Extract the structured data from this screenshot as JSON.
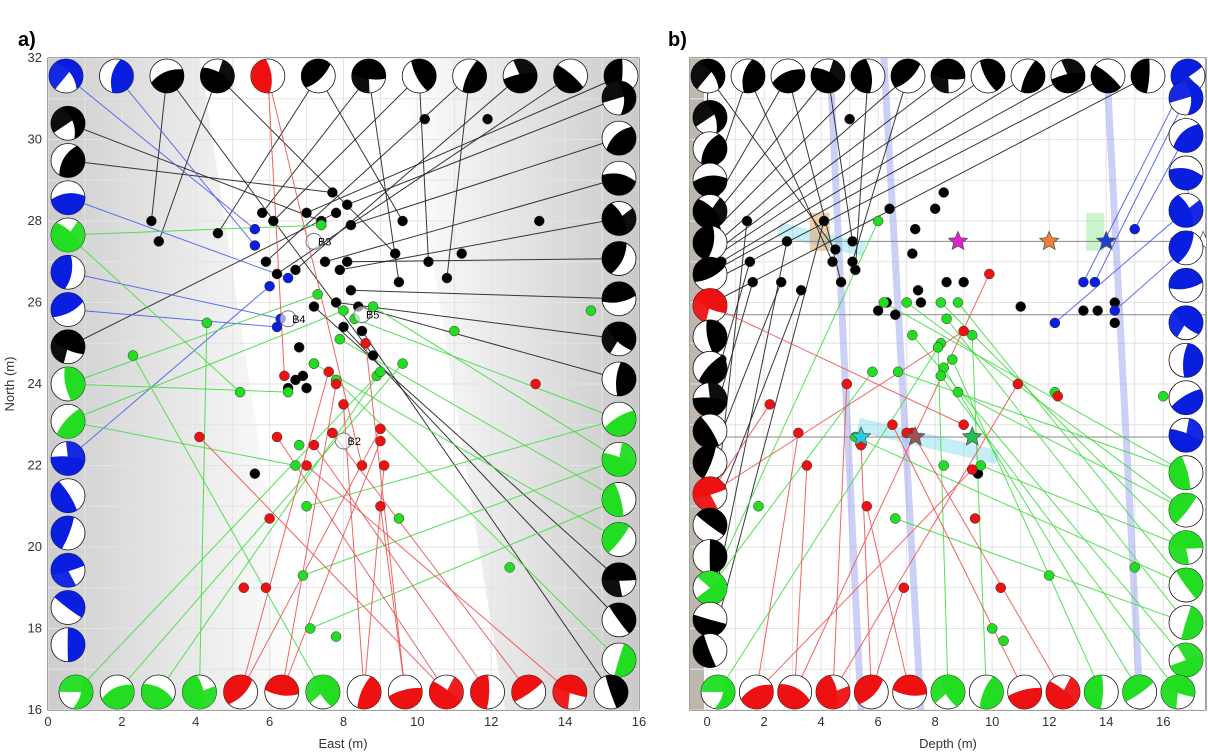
{
  "colors": {
    "black": "#000000",
    "blue": "#0a1ee0",
    "green": "#22dd22",
    "red": "#ee1111",
    "blue_line": "#4a5ff0",
    "green_line": "#44dd44",
    "red_line": "#ee5555"
  },
  "chart_data": [
    {
      "panel_label": "a)",
      "type": "scatter",
      "xlabel": "East (m)",
      "ylabel": "North (m)",
      "xlim": [
        0,
        16
      ],
      "ylim": [
        16,
        32
      ],
      "xticks": [
        "0",
        "2",
        "4",
        "6",
        "8",
        "10",
        "12",
        "14",
        "16"
      ],
      "yticks": [
        "16",
        "18",
        "20",
        "22",
        "24",
        "26",
        "28",
        "30",
        "32"
      ],
      "grid": true,
      "annotations": [
        {
          "text": "B3",
          "x": 7.2,
          "y": 27.5
        },
        {
          "text": "B4",
          "x": 6.5,
          "y": 25.6
        },
        {
          "text": "B5",
          "x": 8.5,
          "y": 25.7
        },
        {
          "text": "B2",
          "x": 8.0,
          "y": 22.6
        }
      ],
      "points": {
        "black": [
          [
            2.8,
            28
          ],
          [
            3.0,
            27.5
          ],
          [
            4.6,
            27.7
          ],
          [
            5.8,
            28.2
          ],
          [
            6.1,
            28.0
          ],
          [
            5.9,
            27.0
          ],
          [
            6.7,
            26.8
          ],
          [
            6.2,
            26.7
          ],
          [
            7.0,
            28.2
          ],
          [
            7.4,
            28.0
          ],
          [
            7.7,
            28.7
          ],
          [
            7.8,
            28.2
          ],
          [
            8.1,
            28.4
          ],
          [
            8.2,
            27.9
          ],
          [
            7.5,
            27.0
          ],
          [
            7.9,
            26.8
          ],
          [
            8.1,
            27.0
          ],
          [
            8.2,
            26.3
          ],
          [
            7.8,
            26.0
          ],
          [
            8.4,
            25.9
          ],
          [
            7.2,
            25.9
          ],
          [
            8.0,
            25.4
          ],
          [
            8.5,
            25.3
          ],
          [
            8.8,
            24.7
          ],
          [
            9.4,
            27.2
          ],
          [
            9.6,
            28.0
          ],
          [
            9.5,
            26.5
          ],
          [
            10.3,
            27.0
          ],
          [
            10.8,
            26.6
          ],
          [
            11.2,
            27.2
          ],
          [
            10.2,
            30.5
          ],
          [
            11.9,
            30.5
          ],
          [
            13.3,
            28.0
          ],
          [
            7.2,
            24.5
          ],
          [
            6.9,
            24.2
          ],
          [
            6.7,
            24.1
          ],
          [
            6.5,
            23.9
          ],
          [
            7.0,
            23.9
          ],
          [
            5.6,
            21.8
          ],
          [
            6.8,
            24.9
          ]
        ],
        "blue": [
          [
            5.6,
            27.8
          ],
          [
            5.6,
            27.4
          ],
          [
            6.5,
            26.6
          ],
          [
            6.3,
            25.6
          ],
          [
            6.2,
            25.4
          ],
          [
            6.0,
            26.4
          ]
        ],
        "green": [
          [
            7.4,
            27.9
          ],
          [
            7.3,
            26.2
          ],
          [
            8.0,
            25.8
          ],
          [
            8.3,
            25.6
          ],
          [
            8.8,
            25.9
          ],
          [
            7.9,
            25.1
          ],
          [
            7.2,
            24.5
          ],
          [
            7.8,
            24.1
          ],
          [
            8.9,
            24.2
          ],
          [
            9.6,
            24.5
          ],
          [
            9.0,
            24.3
          ],
          [
            4.3,
            25.5
          ],
          [
            2.3,
            24.7
          ],
          [
            5.2,
            23.8
          ],
          [
            6.5,
            23.8
          ],
          [
            6.7,
            22.0
          ],
          [
            7.0,
            21.0
          ],
          [
            6.9,
            19.3
          ],
          [
            7.1,
            18.0
          ],
          [
            7.8,
            17.8
          ],
          [
            9.5,
            20.7
          ],
          [
            11.0,
            25.3
          ],
          [
            12.5,
            19.5
          ],
          [
            14.7,
            25.8
          ],
          [
            6.8,
            22.5
          ]
        ],
        "red": [
          [
            6.4,
            24.2
          ],
          [
            7.6,
            24.3
          ],
          [
            7.8,
            24.0
          ],
          [
            8.0,
            23.5
          ],
          [
            8.6,
            25.0
          ],
          [
            6.2,
            22.7
          ],
          [
            7.2,
            22.5
          ],
          [
            7.7,
            22.8
          ],
          [
            7.0,
            22.0
          ],
          [
            8.5,
            22.0
          ],
          [
            9.0,
            22.9
          ],
          [
            9.0,
            22.6
          ],
          [
            9.1,
            22.0
          ],
          [
            9.0,
            21.0
          ],
          [
            4.1,
            22.7
          ],
          [
            6.0,
            20.7
          ],
          [
            5.3,
            19.0
          ],
          [
            5.9,
            19.0
          ],
          [
            13.2,
            24.0
          ]
        ]
      }
    },
    {
      "panel_label": "b)",
      "type": "scatter",
      "xlabel": "Depth (m)",
      "ylabel": "",
      "xlim": [
        -0.6,
        17.5
      ],
      "ylim": [
        16,
        32
      ],
      "xticks": [
        "0",
        "2",
        "4",
        "6",
        "8",
        "10",
        "12",
        "14",
        "16"
      ],
      "yticks": [],
      "grid": true,
      "points": {
        "black": [
          [
            0.0,
            30.5
          ],
          [
            0.1,
            28.8
          ],
          [
            0.3,
            28.5
          ],
          [
            0.1,
            28.0
          ],
          [
            0.3,
            27.8
          ],
          [
            0.4,
            27.5
          ],
          [
            0.2,
            27.2
          ],
          [
            0.0,
            27.0
          ],
          [
            0.5,
            27.0
          ],
          [
            0.3,
            26.8
          ],
          [
            0.1,
            26.5
          ],
          [
            0.2,
            26.0
          ],
          [
            0.0,
            25.8
          ],
          [
            0.4,
            25.3
          ],
          [
            0.2,
            24.9
          ],
          [
            0.3,
            24.6
          ],
          [
            0.1,
            24.4
          ],
          [
            0.2,
            24.1
          ],
          [
            0.5,
            24.6
          ],
          [
            0.0,
            24.2
          ],
          [
            1.5,
            27.0
          ],
          [
            1.6,
            26.5
          ],
          [
            2.6,
            26.5
          ],
          [
            3.3,
            26.3
          ],
          [
            1.4,
            28.0
          ],
          [
            2.8,
            27.5
          ],
          [
            4.1,
            28.0
          ],
          [
            4.5,
            27.3
          ],
          [
            4.4,
            27.0
          ],
          [
            4.7,
            26.5
          ],
          [
            5.1,
            27.5
          ],
          [
            5.2,
            26.8
          ],
          [
            5.1,
            27.0
          ],
          [
            6.4,
            28.3
          ],
          [
            7.3,
            27.8
          ],
          [
            8.0,
            28.3
          ],
          [
            7.2,
            27.2
          ],
          [
            7.4,
            26.3
          ],
          [
            8.4,
            26.5
          ],
          [
            9.0,
            26.5
          ],
          [
            6.0,
            25.8
          ],
          [
            6.3,
            26.0
          ],
          [
            6.6,
            25.7
          ],
          [
            7.5,
            26.0
          ],
          [
            11.0,
            25.9
          ],
          [
            13.2,
            25.8
          ],
          [
            14.3,
            25.5
          ],
          [
            14.3,
            26.0
          ],
          [
            13.7,
            25.8
          ],
          [
            9.5,
            21.8
          ],
          [
            5.0,
            30.5
          ],
          [
            8.3,
            28.7
          ]
        ],
        "blue": [
          [
            13.2,
            26.5
          ],
          [
            13.6,
            26.5
          ],
          [
            15.0,
            27.8
          ],
          [
            17.0,
            28.0
          ],
          [
            12.2,
            25.5
          ],
          [
            14.3,
            25.8
          ]
        ],
        "green": [
          [
            6.0,
            28.0
          ],
          [
            6.2,
            26.0
          ],
          [
            7.0,
            26.0
          ],
          [
            8.2,
            26.0
          ],
          [
            8.8,
            26.0
          ],
          [
            8.4,
            25.6
          ],
          [
            7.2,
            25.2
          ],
          [
            8.2,
            25.0
          ],
          [
            8.1,
            24.9
          ],
          [
            9.3,
            25.2
          ],
          [
            8.6,
            24.6
          ],
          [
            8.3,
            24.4
          ],
          [
            8.2,
            24.2
          ],
          [
            5.8,
            24.3
          ],
          [
            6.7,
            24.3
          ],
          [
            8.8,
            23.8
          ],
          [
            9.6,
            22.0
          ],
          [
            5.2,
            22.7
          ],
          [
            6.6,
            20.7
          ],
          [
            8.3,
            22.0
          ],
          [
            1.8,
            21.0
          ],
          [
            12.2,
            23.8
          ],
          [
            12.0,
            19.3
          ],
          [
            16.0,
            23.7
          ],
          [
            15.0,
            19.5
          ],
          [
            10.0,
            18.0
          ],
          [
            10.4,
            17.7
          ]
        ],
        "red": [
          [
            -0.3,
            22.8
          ],
          [
            2.2,
            23.5
          ],
          [
            3.2,
            22.8
          ],
          [
            3.5,
            22.0
          ],
          [
            4.9,
            24.0
          ],
          [
            5.4,
            22.5
          ],
          [
            5.6,
            21.0
          ],
          [
            6.5,
            23.0
          ],
          [
            7.2,
            22.8
          ],
          [
            9.0,
            23.0
          ],
          [
            9.0,
            25.3
          ],
          [
            9.3,
            21.9
          ],
          [
            9.9,
            26.7
          ],
          [
            10.9,
            24.0
          ],
          [
            6.9,
            19.0
          ],
          [
            9.4,
            20.7
          ],
          [
            12.3,
            23.7
          ],
          [
            10.3,
            19.0
          ],
          [
            7.0,
            22.8
          ]
        ]
      },
      "stars": [
        {
          "x": 8.8,
          "y": 27.5,
          "color": "#e020d0"
        },
        {
          "x": 12.0,
          "y": 27.5,
          "color": "#f08030"
        },
        {
          "x": 14.0,
          "y": 27.5,
          "color": "#2040d0"
        },
        {
          "x": 5.4,
          "y": 22.7,
          "color": "#20d0e0"
        },
        {
          "x": 7.3,
          "y": 22.7,
          "color": "#a05050"
        },
        {
          "x": 9.3,
          "y": 22.7,
          "color": "#20c050"
        },
        {
          "x": 16.6,
          "y": 27.5,
          "color": "#ffffff"
        },
        {
          "x": 17.0,
          "y": 27.5,
          "color": "#ffffff"
        },
        {
          "x": 17.4,
          "y": 27.5,
          "color": "#ffffff"
        }
      ]
    }
  ],
  "beachballs": {
    "a_top": [
      "blue",
      "blue",
      "black",
      "black",
      "red",
      "black",
      "black",
      "black",
      "black",
      "black",
      "black",
      "black"
    ],
    "a_left": [
      "black",
      "black",
      "blue",
      "green",
      "blue",
      "blue",
      "black",
      "green",
      "green",
      "blue",
      "blue",
      "blue",
      "blue",
      "blue",
      "blue"
    ],
    "a_right": [
      "black",
      "black",
      "black",
      "black",
      "black",
      "black",
      "black",
      "black",
      "green",
      "green",
      "green",
      "green",
      "black",
      "black",
      "green"
    ],
    "a_bottom": [
      "green",
      "green",
      "green",
      "green",
      "red",
      "red",
      "green",
      "red",
      "red",
      "red",
      "red",
      "red",
      "red",
      "black"
    ],
    "b_top": [
      "black",
      "black",
      "black",
      "black",
      "black",
      "black",
      "black",
      "black",
      "black",
      "black",
      "black",
      "black",
      "blue"
    ],
    "b_left": [
      "black",
      "black",
      "black",
      "black",
      "black",
      "black",
      "red",
      "black",
      "black",
      "black",
      "black",
      "black",
      "red",
      "black",
      "black",
      "green",
      "black",
      "black"
    ],
    "b_right": [
      "blue",
      "blue",
      "blue",
      "blue",
      "blue",
      "blue",
      "blue",
      "blue",
      "blue",
      "blue",
      "green",
      "green",
      "green",
      "green",
      "green",
      "green"
    ],
    "b_bottom": [
      "green",
      "red",
      "red",
      "red",
      "red",
      "red",
      "green",
      "green",
      "red",
      "red",
      "green",
      "green",
      "green"
    ]
  }
}
